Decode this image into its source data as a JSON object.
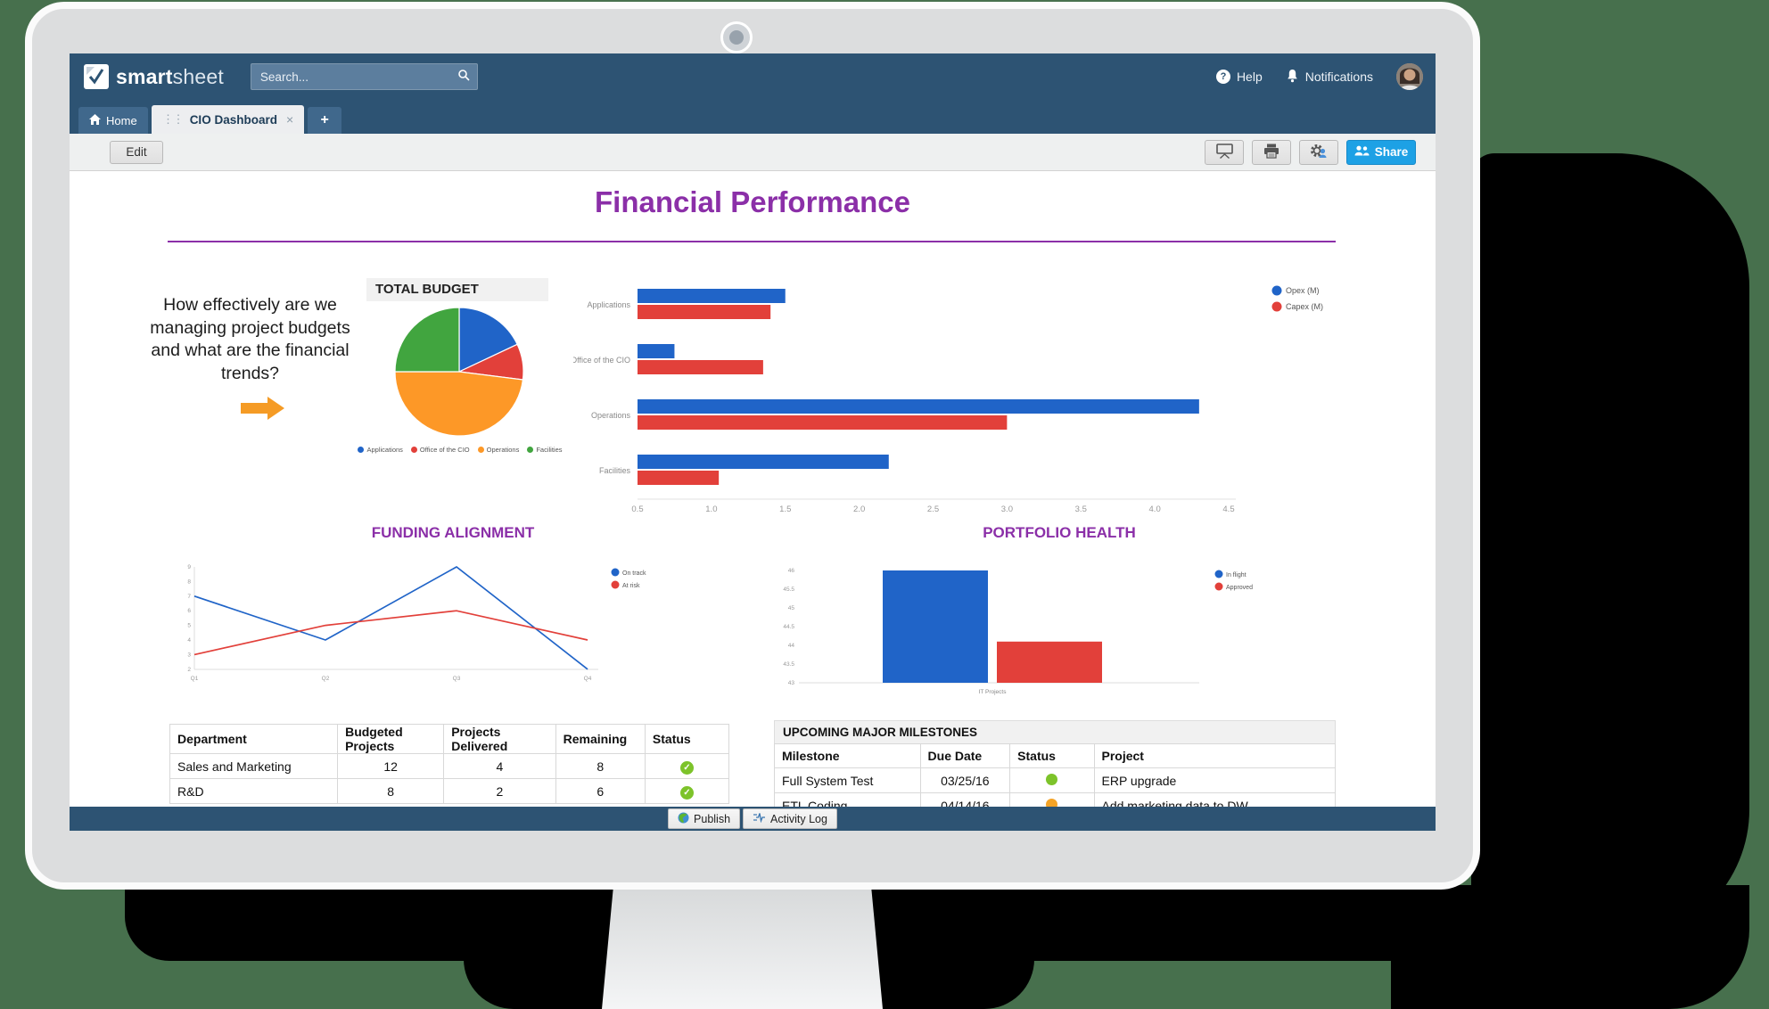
{
  "window": {
    "background_color": "#47704d",
    "shadow_color": "#000000"
  },
  "topbar": {
    "logo": {
      "brand_first": "smart",
      "brand_second": "sheet"
    },
    "search": {
      "placeholder": "Search..."
    },
    "help_label": "Help",
    "notifications_label": "Notifications"
  },
  "tabs": {
    "home_label": "Home",
    "dashboard_label": "CIO Dashboard",
    "close_glyph": "×",
    "add_glyph": "+"
  },
  "toolbar": {
    "edit_label": "Edit",
    "share_label": "Share"
  },
  "dashboard": {
    "title": "Financial Performance",
    "accent_color": "#8b2fa8",
    "question": "How effectively are we managing project budgets and what are the financial trends?"
  },
  "chart_data": [
    {
      "type": "pie",
      "title": "TOTAL BUDGET",
      "labels": [
        "Applications",
        "Office of the CIO",
        "Operations",
        "Facilities"
      ],
      "values": [
        18,
        9,
        48,
        25
      ],
      "colors": [
        "#2064c8",
        "#e2403a",
        "#fd9827",
        "#41a53f"
      ],
      "legend_position": "bottom"
    },
    {
      "type": "bar",
      "orientation": "horizontal",
      "categories": [
        "Applications",
        "Office of the CIO",
        "Operations",
        "Facilities"
      ],
      "series": [
        {
          "name": "Opex (M)",
          "color": "#2064c8",
          "values": [
            1.5,
            0.75,
            4.3,
            2.2
          ]
        },
        {
          "name": "Capex (M)",
          "color": "#e2403a",
          "values": [
            1.4,
            1.35,
            3.0,
            1.05
          ]
        }
      ],
      "xlim": [
        0.5,
        4.5
      ],
      "tick_step": 0.5,
      "legend_position": "right"
    },
    {
      "type": "line",
      "title": "FUNDING ALIGNMENT",
      "x": [
        "Q1",
        "Q2",
        "Q3",
        "Q4"
      ],
      "series": [
        {
          "name": "On track",
          "color": "#2064c8",
          "values": [
            7,
            4,
            9,
            2
          ]
        },
        {
          "name": "At risk",
          "color": "#e2403a",
          "values": [
            3,
            5,
            6,
            4
          ]
        }
      ],
      "ylim": [
        2,
        9
      ],
      "tick_step": 1,
      "legend_position": "right"
    },
    {
      "type": "bar",
      "title": "PORTFOLIO HEALTH",
      "categories": [
        "IT Projects"
      ],
      "series": [
        {
          "name": "In flight",
          "color": "#2064c8",
          "values": [
            46
          ]
        },
        {
          "name": "Approved",
          "color": "#e2403a",
          "values": [
            44.1
          ]
        }
      ],
      "ylim": [
        43,
        46
      ],
      "tick_step": 0.5,
      "legend_position": "right"
    }
  ],
  "tables": {
    "departments": {
      "headers": [
        "Department",
        "Budgeted Projects",
        "Projects Delivered",
        "Remaining",
        "Status"
      ],
      "rows": [
        {
          "department": "Sales and Marketing",
          "budgeted": 12,
          "delivered": 4,
          "remaining": 8,
          "status_color": "#7dc32a"
        },
        {
          "department": "R&D",
          "budgeted": 8,
          "delivered": 2,
          "remaining": 6,
          "status_color": "#7dc32a"
        }
      ]
    },
    "milestones": {
      "title": "UPCOMING MAJOR MILESTONES",
      "headers": [
        "Milestone",
        "Due Date",
        "Status",
        "Project"
      ],
      "rows": [
        {
          "milestone": "Full System Test",
          "due_date": "03/25/16",
          "status_color": "#7dc32a",
          "project": "ERP upgrade"
        },
        {
          "milestone": "ETL Coding",
          "due_date": "04/14/16",
          "status_color": "#f5a427",
          "project": "Add marketing data to DW"
        }
      ]
    }
  },
  "bottombar": {
    "publish_label": "Publish",
    "activity_log_label": "Activity Log"
  }
}
